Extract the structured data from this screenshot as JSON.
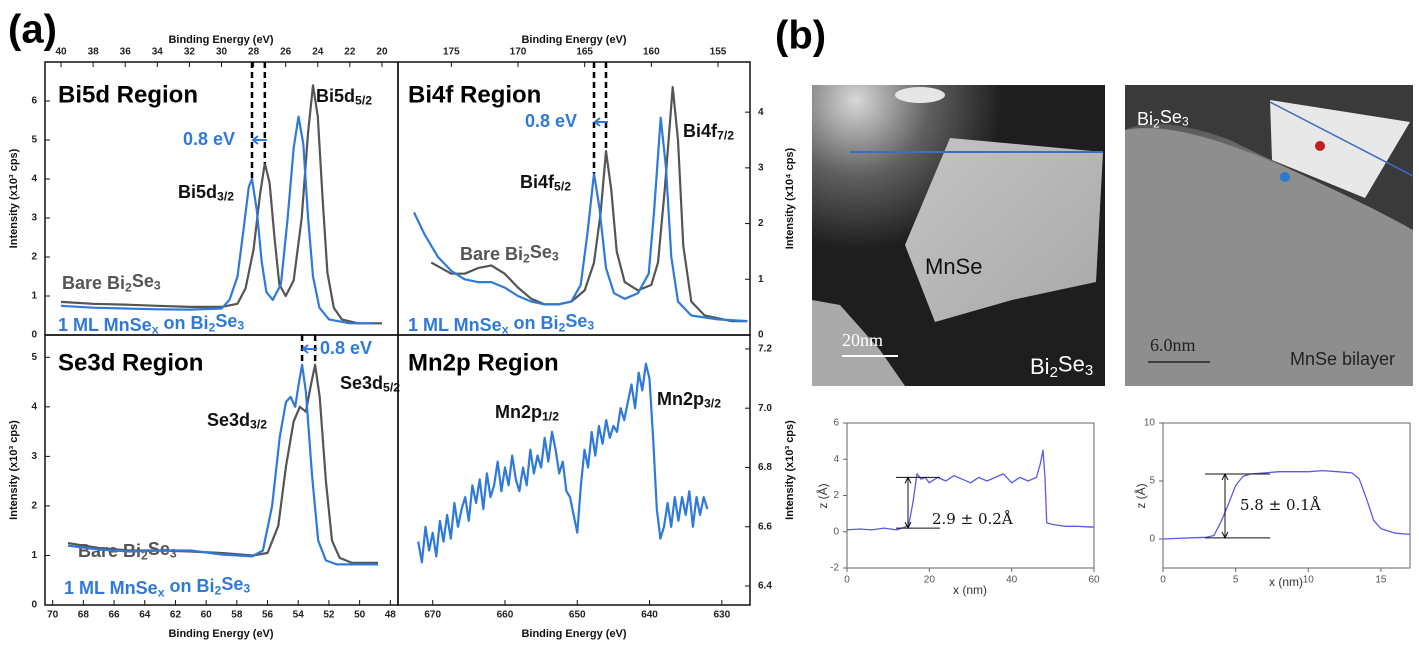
{
  "panel_labels": [
    "(a)",
    "(b)"
  ],
  "images": [
    {
      "labels": [
        [
          "MnSe"
        ],
        [
          "20nm"
        ],
        [
          "Bi",
          "2",
          "Se",
          "3"
        ]
      ]
    },
    {
      "labels": [
        [
          "Bi",
          "2",
          "Se",
          "3"
        ],
        [
          "6.0nm"
        ],
        [
          "MnSe bilayer"
        ]
      ]
    }
  ],
  "chart_data": [
    {
      "type": "line",
      "title": "Bi5d Region",
      "xlabel": "Binding Energy (eV)",
      "ylabel": "Intensity (x10³ cps)",
      "xlim": [
        41,
        19
      ],
      "xticks": [
        40,
        38,
        36,
        34,
        32,
        30,
        28,
        26,
        24,
        22,
        20
      ],
      "ylim": [
        0,
        7
      ],
      "yticks": [
        0,
        1,
        2,
        3,
        4,
        5,
        6
      ],
      "series": [
        {
          "name": [
            "Bare Bi",
            "2",
            "Se",
            "3"
          ],
          "color": "#555555",
          "x": [
            40,
            38,
            36,
            34,
            32,
            30,
            29,
            28.5,
            28,
            27.6,
            27.3,
            27.0,
            26.7,
            26.4,
            26.0,
            25.5,
            25.0,
            24.6,
            24.3,
            24.0,
            23.7,
            23.4,
            23.0,
            22.5,
            21.5,
            20
          ],
          "values": [
            0.85,
            0.8,
            0.78,
            0.75,
            0.72,
            0.72,
            0.8,
            1.2,
            2.2,
            3.6,
            4.4,
            3.9,
            2.5,
            1.3,
            1.0,
            1.4,
            3.0,
            5.2,
            6.4,
            5.6,
            3.5,
            1.6,
            0.7,
            0.4,
            0.3,
            0.3
          ]
        },
        {
          "name": [
            "1 ML MnSe",
            "x",
            " on Bi",
            "2",
            "Se",
            "3"
          ],
          "color": "#2f7ad9",
          "x": [
            40,
            38,
            36,
            34,
            32,
            30,
            29.5,
            29,
            28.6,
            28.3,
            28.1,
            27.8,
            27.5,
            27.2,
            26.8,
            26.3,
            25.9,
            25.5,
            25.2,
            24.9,
            24.6,
            24.3,
            23.9,
            23.3,
            22,
            20.5
          ],
          "values": [
            0.75,
            0.7,
            0.68,
            0.66,
            0.65,
            0.68,
            0.9,
            1.5,
            2.8,
            3.8,
            4.0,
            3.2,
            1.9,
            1.1,
            0.9,
            1.3,
            2.9,
            4.8,
            5.6,
            4.9,
            3.0,
            1.5,
            0.7,
            0.4,
            0.3,
            0.3
          ]
        }
      ],
      "annotations": [
        {
          "parts": [
            "Bi5d",
            "5/2"
          ],
          "color": "#111111"
        },
        {
          "parts": [
            "Bi5d",
            "3/2"
          ],
          "color": "#111111"
        },
        {
          "parts": [
            "0.8 eV"
          ],
          "color": "#2f7ad9"
        }
      ]
    },
    {
      "type": "line",
      "title": "Bi4f Region",
      "xlabel": "Binding Energy (eV)",
      "ylabel": "Intensity (x10⁴ cps)",
      "xlim": [
        179,
        152.6
      ],
      "xticks": [
        175,
        170,
        165,
        160,
        155
      ],
      "ylim": [
        0,
        4.9
      ],
      "yticks": [
        0,
        1,
        2,
        3,
        4
      ],
      "series": [
        {
          "name": [
            "Bare Bi",
            "2",
            "Se",
            "3"
          ],
          "color": "#555555",
          "x": [
            176.5,
            175,
            174,
            173,
            172,
            171,
            170,
            169,
            168,
            167,
            166,
            165,
            164.3,
            163.8,
            163.4,
            163.0,
            162.6,
            162,
            161,
            160,
            159.5,
            159,
            158.4,
            158,
            157.6,
            157,
            156,
            154,
            152.8
          ],
          "values": [
            1.3,
            1.1,
            1.1,
            1.2,
            1.25,
            1.1,
            0.85,
            0.65,
            0.55,
            0.55,
            0.6,
            0.8,
            1.3,
            2.2,
            3.3,
            2.6,
            1.5,
            0.95,
            0.8,
            0.9,
            1.3,
            2.6,
            4.45,
            3.5,
            1.6,
            0.6,
            0.35,
            0.25,
            0.25
          ]
        },
        {
          "name": [
            "1 ML MnSe",
            "x",
            " on Bi",
            "2",
            "Se",
            "3"
          ],
          "color": "#2f7ad9",
          "x": [
            177.8,
            177,
            176,
            175,
            174,
            173,
            172,
            171,
            170,
            169,
            168,
            167,
            166,
            165.3,
            164.8,
            164.3,
            163.9,
            163.4,
            162.8,
            162,
            161,
            160.2,
            159.8,
            159.3,
            158.9,
            158.5,
            158,
            157,
            155,
            152.8
          ],
          "values": [
            2.2,
            1.8,
            1.4,
            1.15,
            1.0,
            0.95,
            0.95,
            0.85,
            0.7,
            0.6,
            0.55,
            0.55,
            0.6,
            0.9,
            1.8,
            2.9,
            2.3,
            1.2,
            0.75,
            0.65,
            0.75,
            1.1,
            2.2,
            3.9,
            3.0,
            1.4,
            0.6,
            0.35,
            0.28,
            0.25
          ]
        }
      ],
      "annotations": [
        {
          "parts": [
            "Bi4f",
            "7/2"
          ],
          "color": "#111111"
        },
        {
          "parts": [
            "Bi4f",
            "5/2"
          ],
          "color": "#111111"
        },
        {
          "parts": [
            "0.8 eV"
          ],
          "color": "#2f7ad9"
        }
      ]
    },
    {
      "type": "line",
      "title": "Se3d Region",
      "xlabel": "Binding Energy (eV)",
      "ylabel": "Intensity (x10³ cps)",
      "xlim": [
        70.5,
        47.5
      ],
      "xticks": [
        70,
        68,
        66,
        64,
        62,
        60,
        58,
        56,
        54,
        52,
        50,
        48
      ],
      "ylim": [
        0,
        5.45
      ],
      "yticks": [
        0,
        1,
        2,
        3,
        4,
        5
      ],
      "series": [
        {
          "name": [
            "Bare Bi",
            "2",
            "Se",
            "3"
          ],
          "color": "#555555",
          "x": [
            69,
            67,
            65,
            63,
            61,
            59,
            57,
            56,
            55.3,
            54.8,
            54.3,
            53.9,
            53.5,
            53.2,
            52.9,
            52.6,
            52.2,
            51.8,
            51.3,
            50.5,
            49,
            48.8
          ],
          "values": [
            1.25,
            1.15,
            1.1,
            1.1,
            1.08,
            1.05,
            1.0,
            1.05,
            1.6,
            2.8,
            3.7,
            4.0,
            3.9,
            4.4,
            4.85,
            4.2,
            2.5,
            1.3,
            0.95,
            0.85,
            0.85,
            0.85
          ]
        },
        {
          "name": [
            "1 ML MnSe",
            "x",
            " on Bi",
            "2",
            "Se",
            "3"
          ],
          "color": "#2f7ad9",
          "x": [
            69,
            67,
            65,
            63,
            61,
            59,
            57,
            56.3,
            55.7,
            55.2,
            54.8,
            54.5,
            54.2,
            54.0,
            53.75,
            53.5,
            53.1,
            52.7,
            52.2,
            51.5,
            50,
            48.8
          ],
          "values": [
            1.2,
            1.12,
            1.08,
            1.1,
            1.1,
            1.02,
            0.98,
            1.1,
            2.0,
            3.4,
            4.1,
            4.2,
            4.0,
            4.4,
            4.85,
            4.3,
            2.6,
            1.3,
            0.9,
            0.82,
            0.82,
            0.82
          ]
        }
      ],
      "annotations": [
        {
          "parts": [
            "Se3d",
            "5/2"
          ],
          "color": "#111111"
        },
        {
          "parts": [
            "Se3d",
            "3/2"
          ],
          "color": "#111111"
        },
        {
          "parts": [
            "0.8 eV"
          ],
          "color": "#2f7ad9"
        }
      ]
    },
    {
      "type": "line",
      "title": "Mn2p Region",
      "xlabel": "Binding Energy (eV)",
      "ylabel": "Intensity (x10³ cps)",
      "xlim": [
        674.8,
        626.1
      ],
      "xticks": [
        670,
        660,
        650,
        640,
        630
      ],
      "ylim": [
        6.336,
        7.247
      ],
      "yticks": [
        6.4,
        6.6,
        6.8,
        {
          "value": 7,
          "label": "7.0"
        },
        7.2
      ],
      "series": [
        {
          "name": [
            "1 ML MnSe",
            "x",
            " on Bi",
            "2",
            "Se",
            "3"
          ],
          "color": "#2f7ad9",
          "x": [
            672,
            671.5,
            671,
            670.5,
            670,
            669.5,
            669,
            668.5,
            668,
            667.5,
            667,
            666.5,
            666,
            665.5,
            665,
            664.5,
            664,
            663.5,
            663,
            662.5,
            662,
            661.5,
            661,
            660.5,
            660,
            659.5,
            659,
            658.5,
            658,
            657.5,
            657,
            656.5,
            656,
            655.5,
            655,
            654.5,
            654,
            653.5,
            653,
            652.5,
            652,
            651.5,
            651,
            650.5,
            650,
            649.5,
            649,
            648.5,
            648,
            647.5,
            647,
            646.5,
            646,
            645.5,
            645,
            644.5,
            644,
            643.5,
            643,
            642.5,
            642,
            641.5,
            641,
            640.5,
            640,
            639.5,
            639,
            638.5,
            638,
            637.5,
            637,
            636.5,
            636,
            635.5,
            635,
            634.5,
            634,
            633.5,
            633,
            632.5,
            632
          ],
          "values": [
            6.55,
            6.48,
            6.6,
            6.52,
            6.58,
            6.5,
            6.62,
            6.55,
            6.64,
            6.56,
            6.68,
            6.6,
            6.66,
            6.7,
            6.62,
            6.74,
            6.68,
            6.76,
            6.66,
            6.78,
            6.7,
            6.74,
            6.82,
            6.72,
            6.8,
            6.74,
            6.84,
            6.76,
            6.72,
            6.8,
            6.74,
            6.86,
            6.78,
            6.84,
            6.8,
            6.9,
            6.82,
            6.92,
            6.86,
            6.78,
            6.82,
            6.72,
            6.7,
            6.64,
            6.58,
            6.74,
            6.86,
            6.8,
            6.92,
            6.84,
            6.94,
            6.88,
            6.96,
            6.9,
            6.94,
            6.92,
            7.0,
            6.96,
            7.02,
            7.08,
            7.0,
            7.12,
            7.06,
            7.15,
            7.1,
            6.9,
            6.66,
            6.56,
            6.6,
            6.68,
            6.6,
            6.7,
            6.62,
            6.7,
            6.64,
            6.72,
            6.6,
            6.7,
            6.64,
            6.7,
            6.66
          ]
        }
      ],
      "annotations": [
        {
          "parts": [
            "Mn2p",
            "1/2"
          ],
          "color": "#111111"
        },
        {
          "parts": [
            "Mn2p",
            "3/2"
          ],
          "color": "#111111"
        }
      ]
    },
    {
      "type": "line",
      "xlabel": "x (nm)",
      "ylabel": "z (Å)",
      "xlim": [
        0,
        60
      ],
      "xticks": [
        0,
        20,
        40,
        60
      ],
      "ylim": [
        -2,
        6
      ],
      "yticks": [
        -2,
        0,
        2,
        4,
        6
      ],
      "series": [
        {
          "color": "#5a5ae6",
          "x": [
            0,
            3,
            6,
            9,
            12,
            14,
            15,
            16,
            17,
            18,
            19,
            20,
            22,
            24,
            26,
            28,
            30,
            32,
            34,
            36,
            38,
            40,
            42,
            44,
            46,
            47,
            47.6,
            48.1,
            48.5,
            50,
            53,
            56,
            60
          ],
          "values": [
            0.1,
            0.15,
            0.1,
            0.2,
            0.1,
            0.25,
            0.4,
            1.6,
            3.2,
            2.9,
            3.0,
            2.7,
            3.0,
            2.8,
            3.1,
            2.9,
            2.7,
            3.0,
            2.8,
            3.0,
            3.2,
            2.7,
            3.0,
            2.8,
            3.0,
            3.8,
            4.5,
            3.0,
            0.5,
            0.4,
            0.3,
            0.3,
            0.25
          ]
        }
      ],
      "annotations": [
        {
          "parts": [
            "2.9 ± 0.2Å"
          ],
          "color": "#111111"
        }
      ]
    },
    {
      "type": "line",
      "xlabel": "x (nm)",
      "ylabel": "z (Å)",
      "xlim": [
        0,
        17
      ],
      "xticks": [
        0,
        5,
        10,
        15
      ],
      "ylim": [
        -2.5,
        10
      ],
      "yticks": [
        0,
        5,
        10
      ],
      "series": [
        {
          "color": "#5a5ae6",
          "x": [
            0,
            1,
            2,
            3,
            3.5,
            4,
            4.5,
            5,
            5.5,
            6,
            7,
            8,
            9,
            10,
            11,
            12,
            13,
            13.5,
            14,
            14.5,
            15,
            16,
            17
          ],
          "values": [
            0,
            0.05,
            0.1,
            0.15,
            0.3,
            1.5,
            3,
            4.6,
            5.4,
            5.6,
            5.7,
            5.8,
            5.8,
            5.8,
            5.9,
            5.8,
            5.7,
            5.2,
            3.5,
            1.6,
            0.9,
            0.5,
            0.4
          ]
        }
      ],
      "annotations": [
        {
          "parts": [
            "5.8 ± 0.1Å"
          ],
          "color": "#111111"
        }
      ]
    }
  ]
}
